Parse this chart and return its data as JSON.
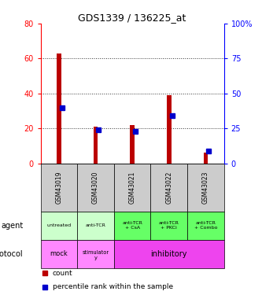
{
  "title": "GDS1339 / 136225_at",
  "samples": [
    "GSM43019",
    "GSM43020",
    "GSM43021",
    "GSM43022",
    "GSM43023"
  ],
  "counts": [
    63,
    21,
    22,
    39,
    6
  ],
  "percentiles": [
    40,
    24,
    23,
    34,
    9
  ],
  "ylim_left": [
    0,
    80
  ],
  "ylim_right": [
    0,
    100
  ],
  "yticks_left": [
    0,
    20,
    40,
    60,
    80
  ],
  "yticks_right": [
    0,
    25,
    50,
    75,
    100
  ],
  "bar_color": "#bb0000",
  "percentile_color": "#0000cc",
  "agent_labels": [
    "untreated",
    "anti-TCR",
    "anti-TCR\n+ CsA",
    "anti-TCR\n+ PKCi",
    "anti-TCR\n+ Combo"
  ],
  "agent_colors": [
    "#ccffcc",
    "#ccffcc",
    "#66ff66",
    "#66ff66",
    "#66ff66"
  ],
  "gsm_bg": "#cccccc",
  "dotted_line_color": "#333333",
  "legend_count_color": "#bb0000",
  "legend_percentile_color": "#0000cc",
  "protocol_color_mock": "#ff88ff",
  "protocol_color_stimulatory": "#ff88ff",
  "protocol_color_inhibitory": "#ee44ee",
  "arrow_color": "#888888"
}
